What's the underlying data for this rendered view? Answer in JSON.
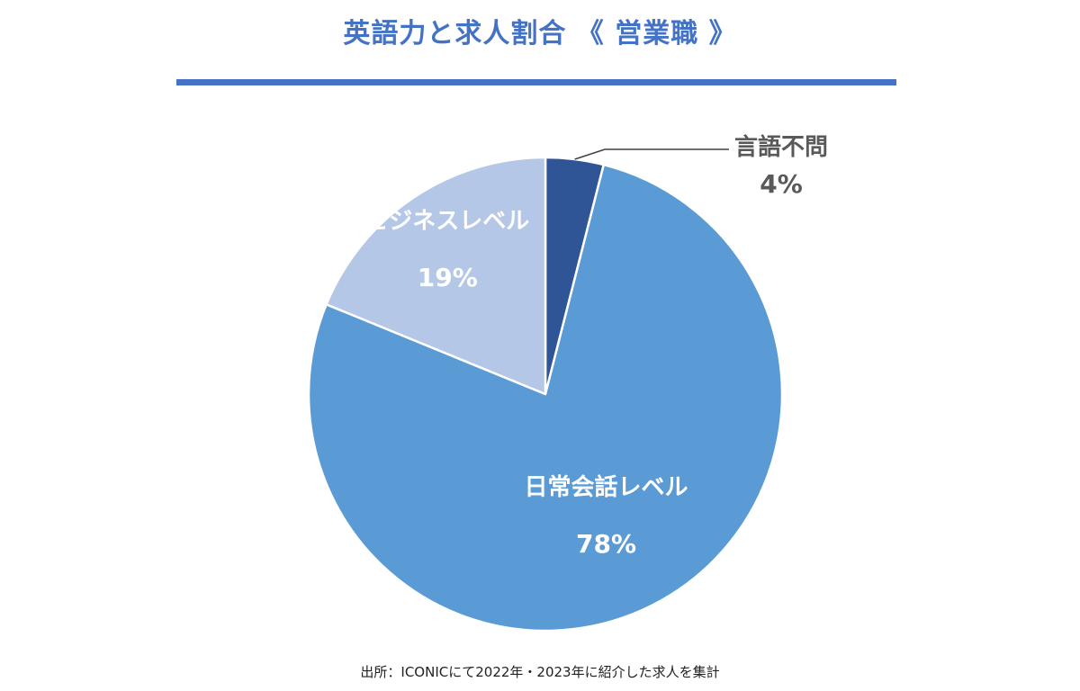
{
  "chart_data": {
    "type": "pie",
    "title": "英語力と求人割合 《 営業職 》",
    "source": "出所：ICONICにて2022年・2023年に紹介した求人を集計",
    "start_angle_deg": 0,
    "direction": "clockwise",
    "slices": [
      {
        "label": "言語不問",
        "value": 4,
        "value_label": "4%",
        "color": "#2F5597",
        "label_color": "#595959",
        "label_style": "outside-leader"
      },
      {
        "label": "日常会話レベル",
        "value": 78,
        "value_label": "78%",
        "color": "#5B9BD5",
        "label_color": "#ffffff",
        "label_style": "inside"
      },
      {
        "label": "ビジネスレベル",
        "value": 19,
        "value_label": "19%",
        "color": "#B4C7E7",
        "label_color": "#ffffff",
        "label_style": "inside"
      }
    ]
  }
}
